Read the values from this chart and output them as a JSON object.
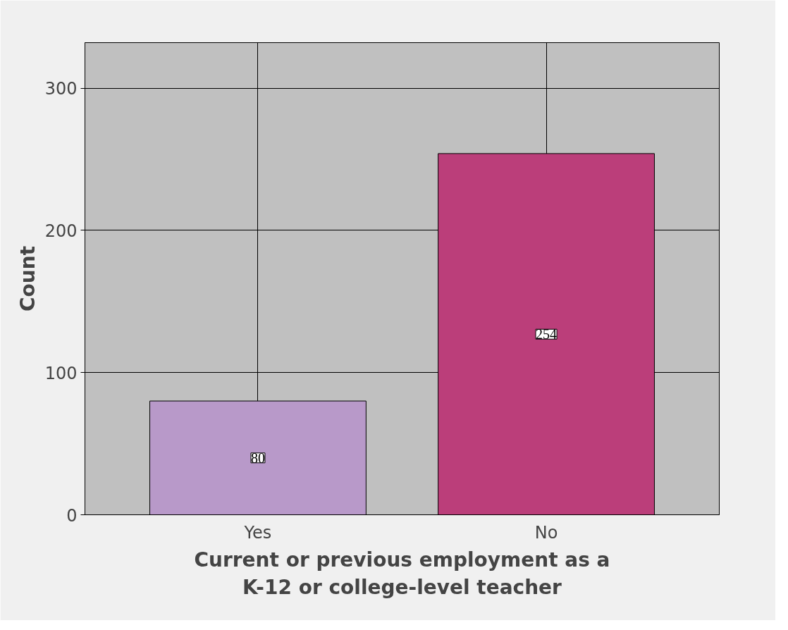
{
  "chart_data": {
    "type": "bar",
    "xlabel": "Current or previous employment as a\nK-12 or college-level teacher",
    "ylabel": "Count",
    "categories": [
      "Yes",
      "No"
    ],
    "values": [
      80,
      254
    ],
    "colors": [
      "#b899c9",
      "#bb3e7a"
    ],
    "ylim": [
      0,
      332
    ],
    "yticks": [
      0,
      100,
      200,
      300
    ],
    "grid": true,
    "data_labels": true
  }
}
